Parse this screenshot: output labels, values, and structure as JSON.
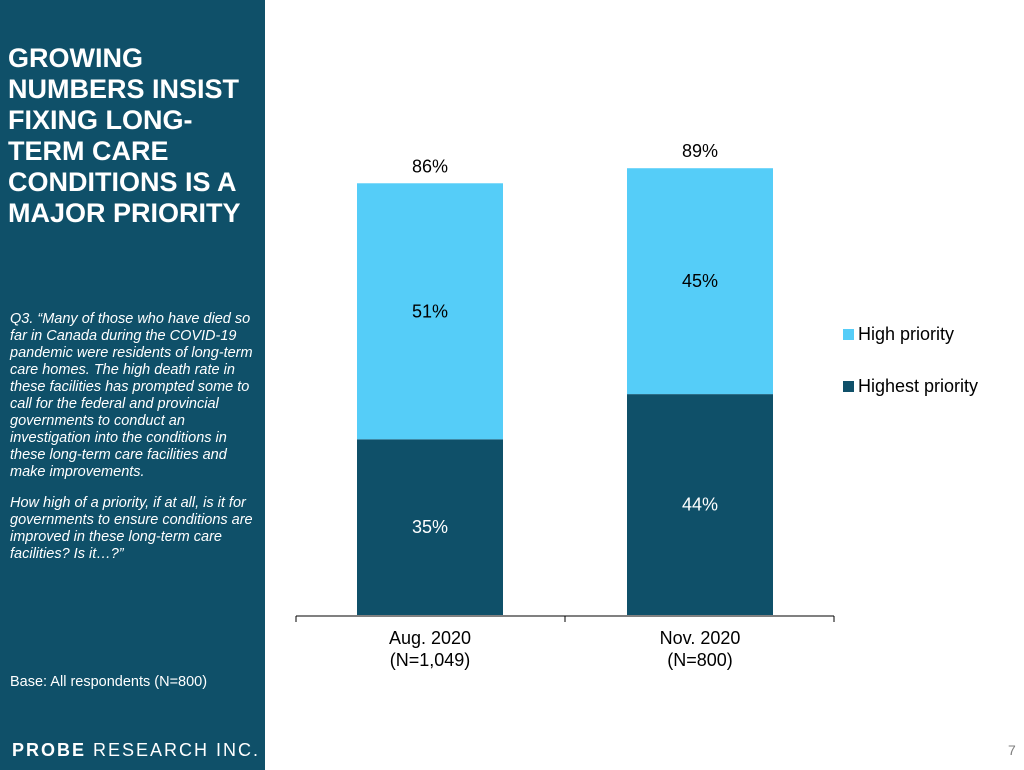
{
  "sidebar": {
    "headline": "GROWING NUMBERS INSIST FIXING LONG-TERM CARE CONDITIONS IS A MAJOR PRIORITY",
    "question_p1": "Q3. “Many of those who have died so far in Canada during the COVID-19 pandemic were residents of long-term care homes. The high death rate in these facilities has prompted some to call for the federal and provincial governments to conduct an investigation into the conditions in these long-term care facilities and make improvements.",
    "question_p2": "How high of a priority, if at all, is it for governments to ensure conditions are improved in these long-term care facilities? Is it…?”",
    "base": "Base: All respondents (N=800)",
    "logo_probe": "PROBE",
    "logo_rest": " RESEARCH INC."
  },
  "page_number": "7",
  "colors": {
    "sidebar_bg": "#0f5069",
    "highest_priority": "#0f5069",
    "high_priority": "#55cdf8"
  },
  "chart_data": {
    "type": "bar",
    "stacked": true,
    "categories": [
      "Aug. 2020\n(N=1,049)",
      "Nov. 2020\n(N=800)"
    ],
    "category_lines": [
      [
        "Aug. 2020",
        "(N=1,049)"
      ],
      [
        "Nov. 2020",
        "(N=800)"
      ]
    ],
    "series": [
      {
        "name": "Highest priority",
        "values": [
          35,
          44
        ],
        "labels": [
          "35%",
          "44%"
        ],
        "color": "#0f5069"
      },
      {
        "name": "High priority",
        "values": [
          51,
          45
        ],
        "labels": [
          "51%",
          "45%"
        ],
        "color": "#55cdf8"
      }
    ],
    "totals": [
      86,
      89
    ],
    "total_labels": [
      "86%",
      "89%"
    ],
    "ylim": [
      0,
      100
    ],
    "grid": false,
    "legend_placement": "right",
    "legend_order": [
      "High priority",
      "Highest priority"
    ]
  }
}
